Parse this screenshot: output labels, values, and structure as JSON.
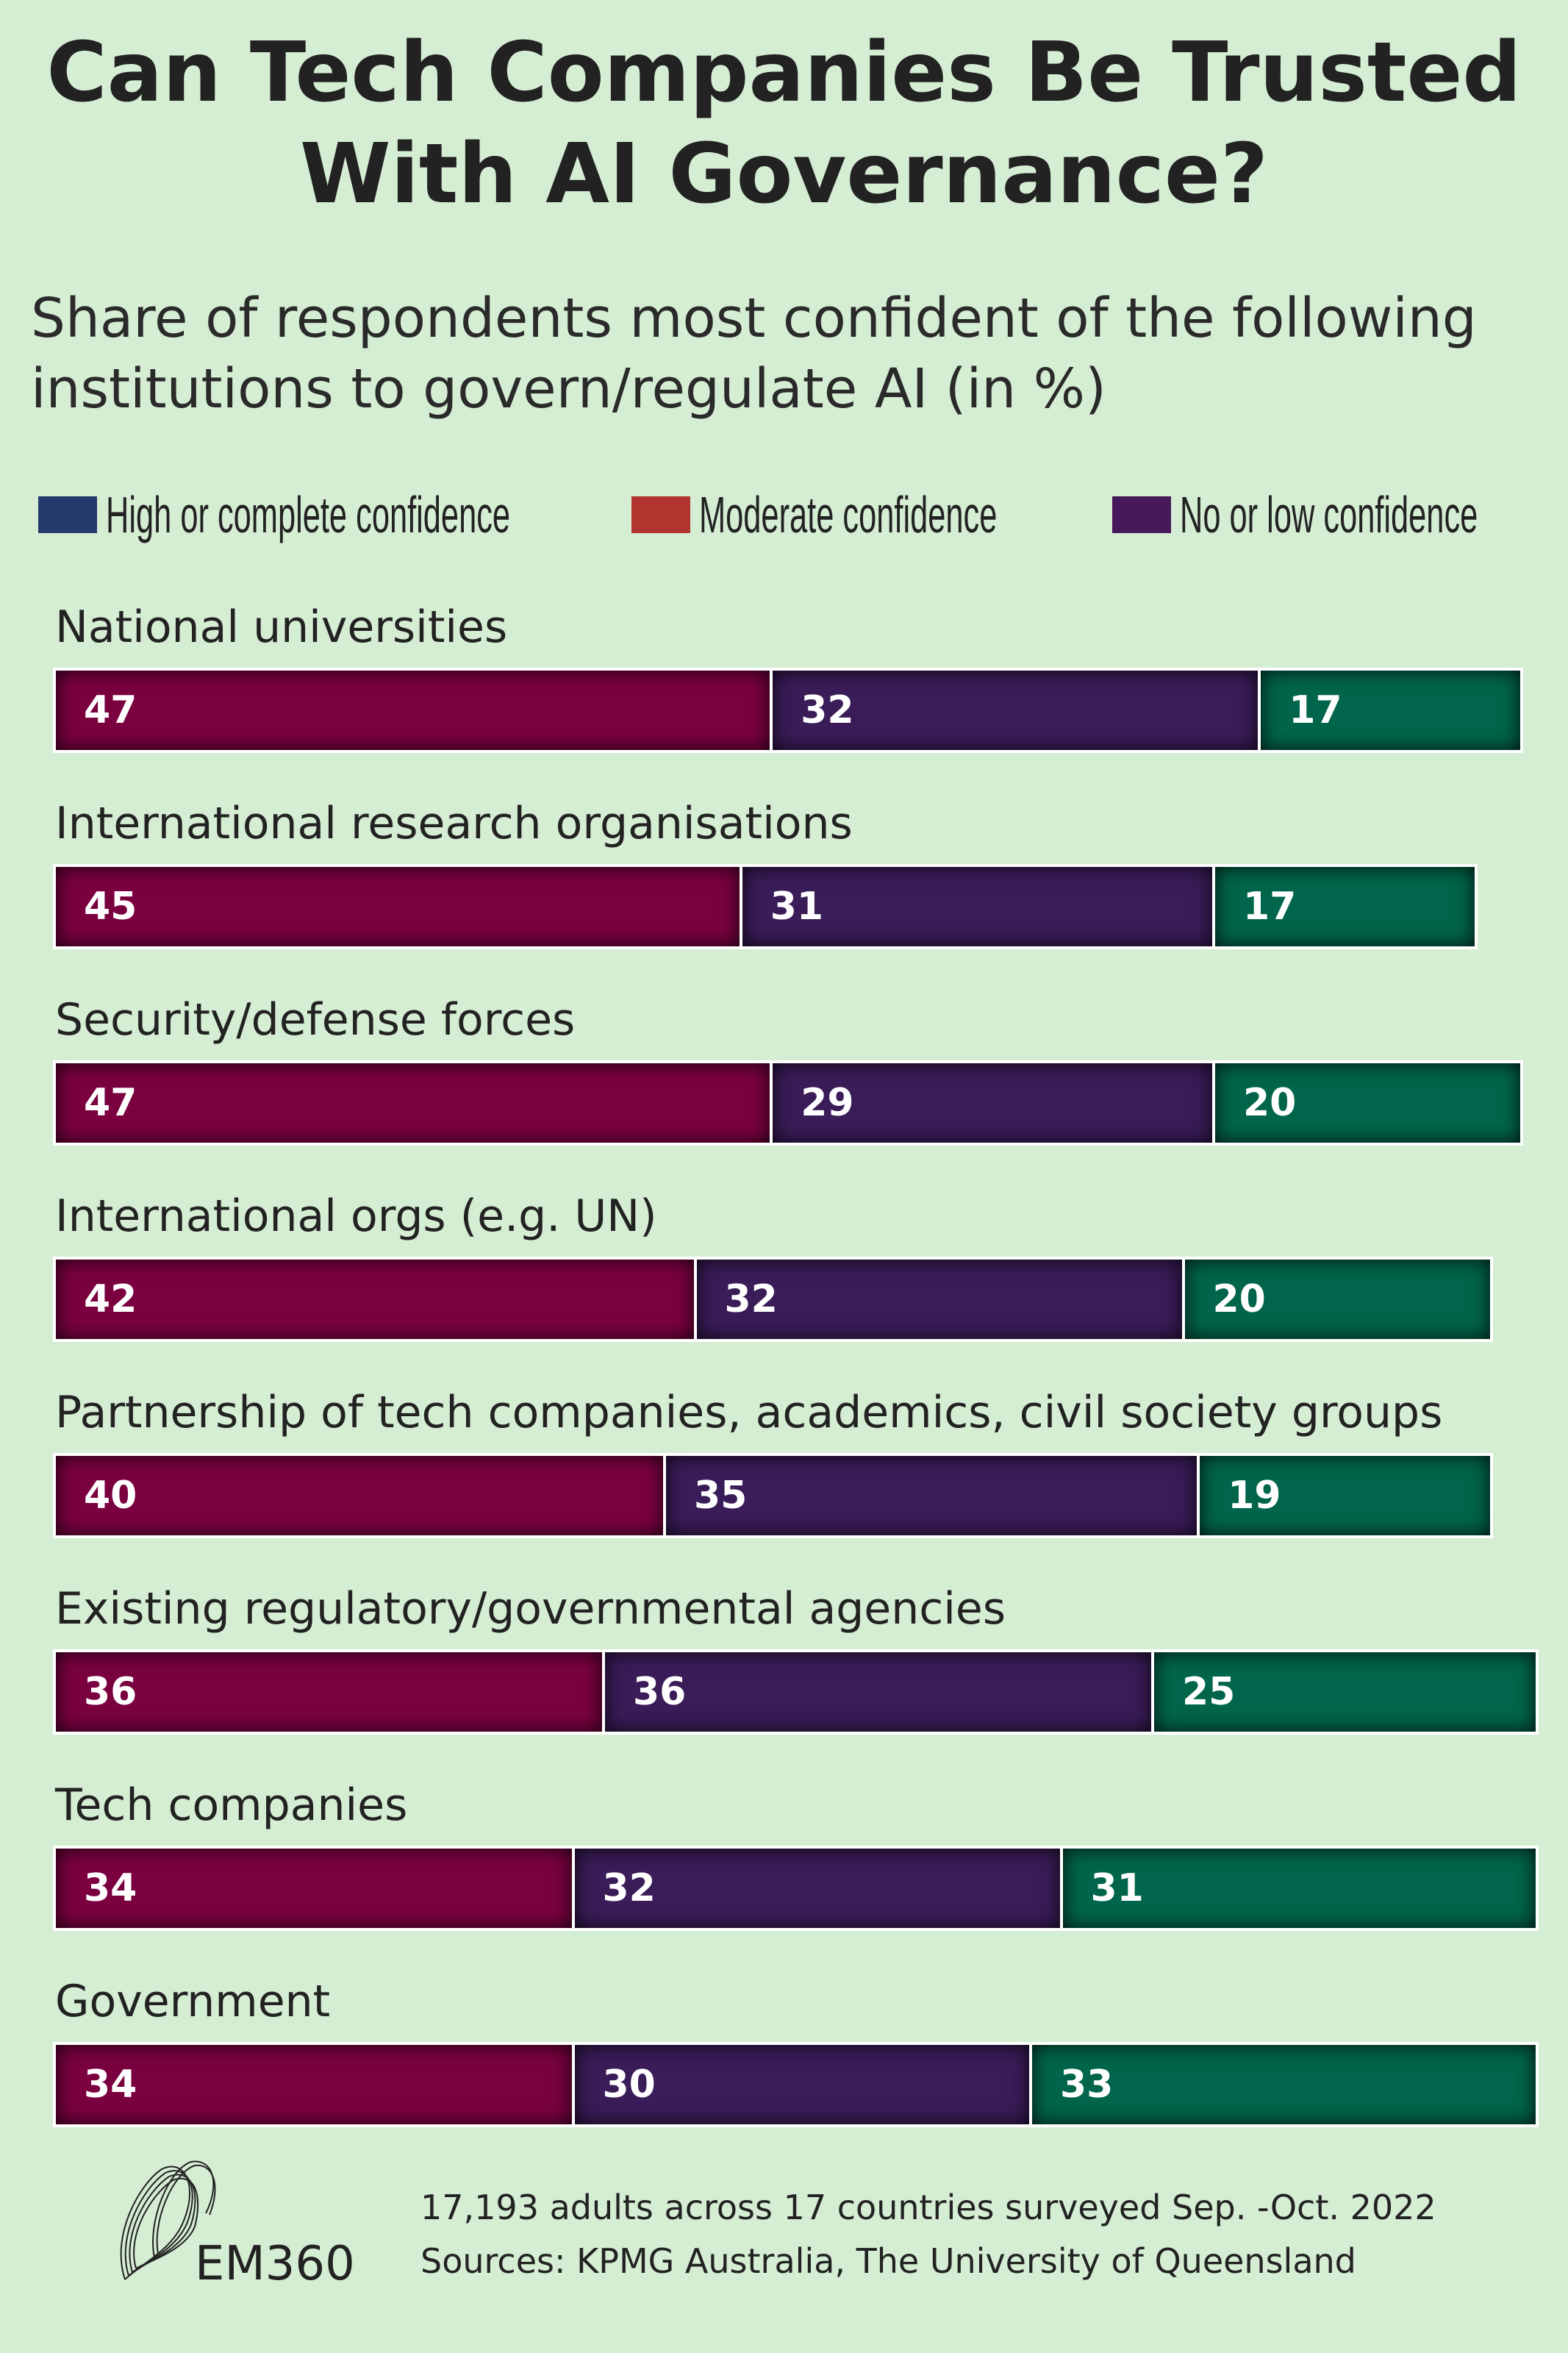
{
  "chart_data": {
    "type": "bar",
    "orientation": "horizontal-stacked",
    "title": "Can Tech Companies Be Trusted With AI Governance?",
    "subtitle": "Share of respondents most confident of the following institutions to govern/regulate AI (in %)",
    "legend": [
      {
        "name": "High or complete confidence",
        "color": "#243a6b"
      },
      {
        "name": "Moderate confidence",
        "color": "#b0352e"
      },
      {
        "name": "No or low confidence",
        "color": "#47195a"
      }
    ],
    "legend_position": "top",
    "segment_colors": [
      "#7a0040",
      "#3a1c58",
      "#00654a"
    ],
    "categories": [
      "National universities",
      "International research organisations",
      "Security/defense forces",
      "International orgs (e.g. UN)",
      "Partnership of tech companies, academics, civil society groups",
      "Existing regulatory/governmental agencies",
      "Tech companies",
      "Government"
    ],
    "series": [
      {
        "values": [
          47,
          45,
          47,
          42,
          40,
          36,
          34,
          34
        ]
      },
      {
        "values": [
          32,
          31,
          29,
          32,
          35,
          36,
          32,
          30
        ]
      },
      {
        "values": [
          17,
          17,
          20,
          20,
          19,
          25,
          31,
          33
        ]
      }
    ],
    "grid": false
  },
  "footer": {
    "note": "17,193 adults across 17 countries surveyed Sep. -Oct. 2022",
    "sources": "Sources: KPMG Australia, The University of Queensland",
    "logo_text": "EM360"
  }
}
